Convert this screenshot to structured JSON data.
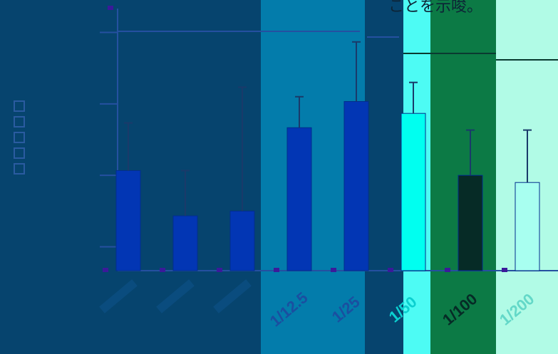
{
  "caption": "ことを示唆。",
  "colors": {
    "background": "#06446e",
    "bar": "#0236b4",
    "axis": "#2550a0",
    "panels": [
      "#06446e",
      "#037cab",
      "#4dfbf4",
      "#0c7a45",
      "#b1fbe6"
    ]
  },
  "chart_data": {
    "type": "bar",
    "title": "",
    "xlabel": "",
    "ylabel": "",
    "categories": [
      "",
      "",
      "",
      "1/12.5",
      "1/25",
      "1/50",
      "1/100",
      "1/200"
    ],
    "values": [
      0.42,
      0.23,
      0.25,
      0.6,
      0.71,
      0.66,
      0.4,
      0.37
    ],
    "errors": [
      0.2,
      0.19,
      0.52,
      0.13,
      0.25,
      0.13,
      0.19,
      0.22
    ],
    "ylim": [
      0,
      1.1
    ],
    "grid": false,
    "legend": "none"
  }
}
